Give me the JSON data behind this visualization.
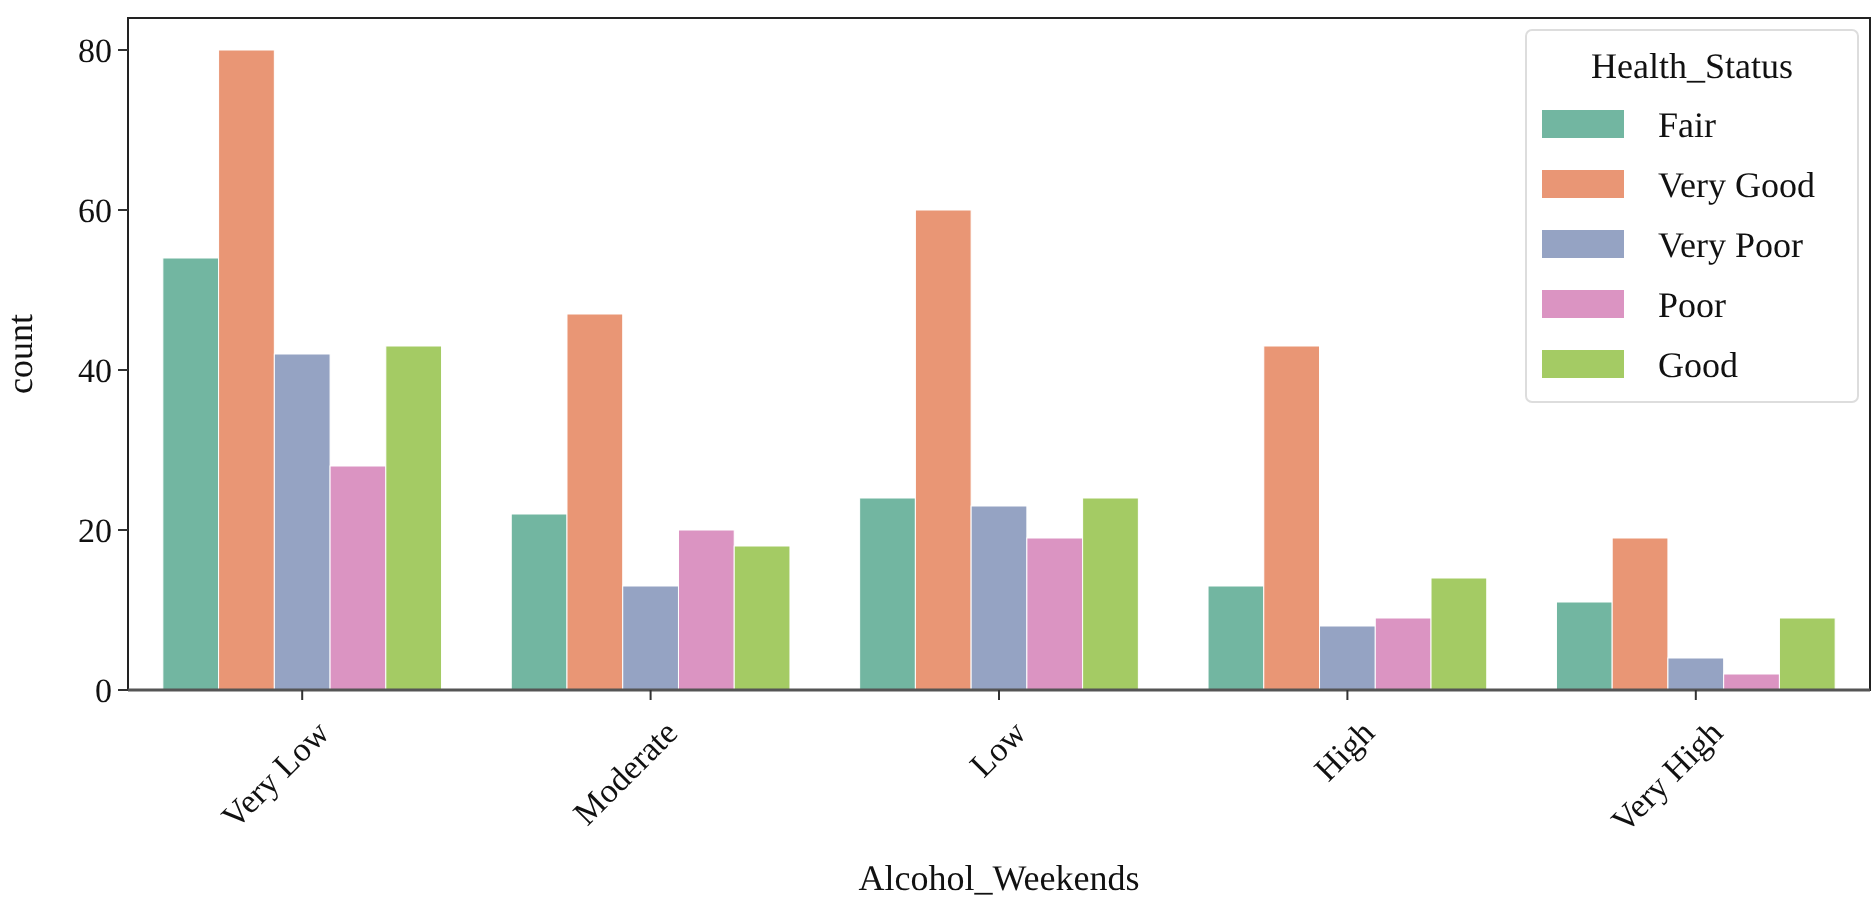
{
  "chart_data": {
    "type": "bar",
    "xlabel": "Alcohol_Weekends",
    "ylabel": "count",
    "legend_title": "Health_Status",
    "legend": "top right",
    "categories": [
      "Very Low",
      "Moderate",
      "Low",
      "High",
      "Very High"
    ],
    "series": [
      {
        "name": "Fair",
        "color": "#72b6a1",
        "values": [
          54,
          22,
          24,
          13,
          11
        ]
      },
      {
        "name": "Very Good",
        "color": "#e99675",
        "values": [
          80,
          47,
          60,
          43,
          19
        ]
      },
      {
        "name": "Very Poor",
        "color": "#95a3c3",
        "values": [
          42,
          13,
          23,
          8,
          4
        ]
      },
      {
        "name": "Poor",
        "color": "#db94c2",
        "values": [
          28,
          20,
          19,
          9,
          2
        ]
      },
      {
        "name": "Good",
        "color": "#a4cb64",
        "values": [
          43,
          18,
          24,
          14,
          9
        ]
      }
    ],
    "ylim": [
      0,
      84
    ],
    "yticks": [
      0,
      20,
      40,
      60,
      80
    ]
  }
}
